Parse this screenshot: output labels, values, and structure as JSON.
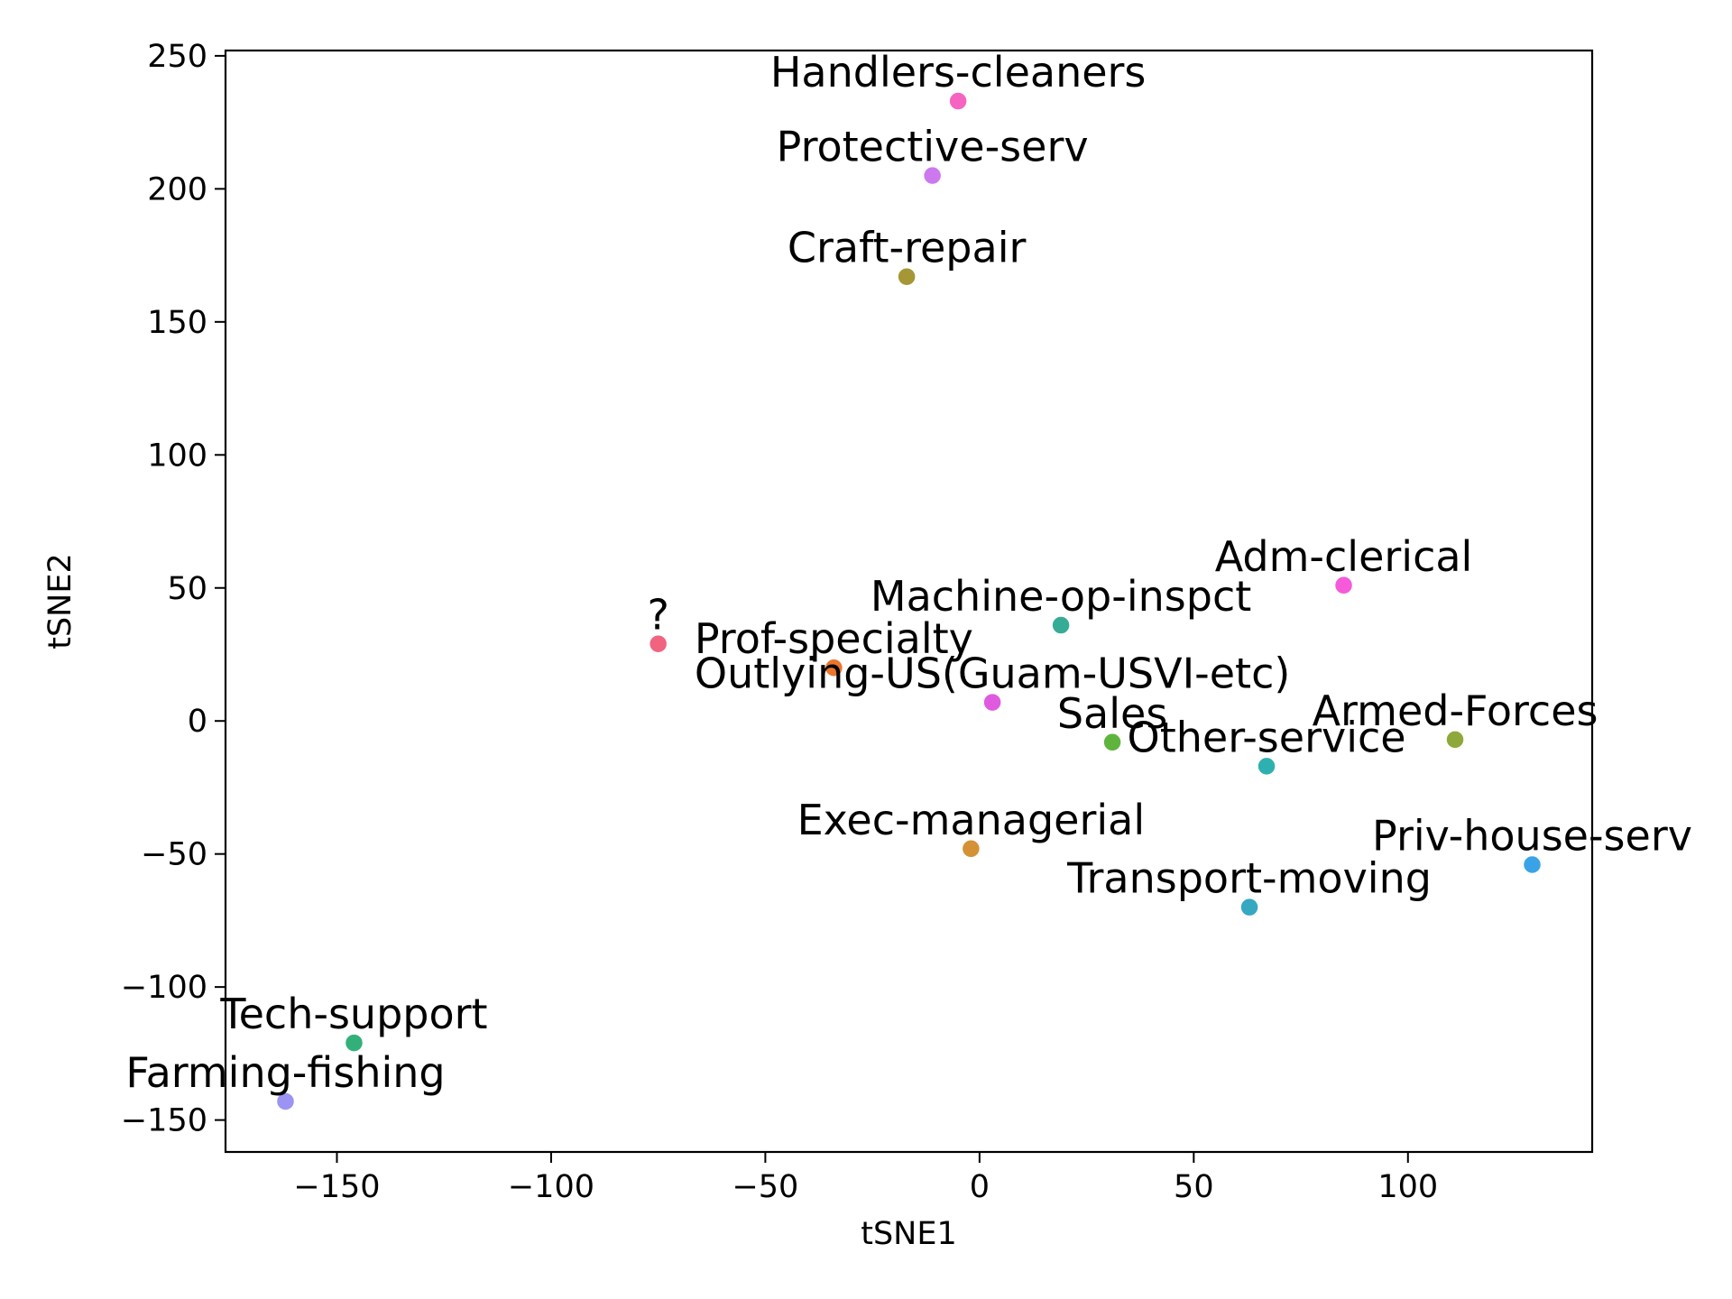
{
  "chart_data": {
    "type": "scatter",
    "title": "",
    "xlabel": "tSNE1",
    "ylabel": "tSNE2",
    "xlim": [
      -176,
      143
    ],
    "ylim": [
      -162,
      252
    ],
    "xticks": [
      -150,
      -100,
      -50,
      0,
      50,
      100
    ],
    "yticks": [
      -150,
      -100,
      -50,
      0,
      50,
      100,
      150,
      200,
      250
    ],
    "xtick_labels": [
      "−150",
      "−100",
      "−50",
      "0",
      "50",
      "100"
    ],
    "ytick_labels": [
      "−150",
      "−100",
      "−50",
      "0",
      "50",
      "100",
      "150",
      "200",
      "250"
    ],
    "grid": false,
    "legend": "none",
    "points": [
      {
        "label": "Handlers-cleaners",
        "x": -5,
        "y": 233,
        "color": "#f564c0"
      },
      {
        "label": "Protective-serv",
        "x": -11,
        "y": 205,
        "color": "#cc79f0"
      },
      {
        "label": "Craft-repair",
        "x": -17,
        "y": 167,
        "color": "#a59736"
      },
      {
        "label": "Adm-clerical",
        "x": 85,
        "y": 51,
        "color": "#f55ad9"
      },
      {
        "label": "Machine-op-inspct",
        "x": 19,
        "y": 36,
        "color": "#36ac97"
      },
      {
        "label": "?",
        "x": -75,
        "y": 29,
        "color": "#f16480"
      },
      {
        "label": "Prof-specialty",
        "x": -34,
        "y": 20,
        "color": "#e8762e"
      },
      {
        "label": "Outlying-US(Guam-USVI-etc)",
        "x": 3,
        "y": 7,
        "color": "#e05ae0"
      },
      {
        "label": "Sales",
        "x": 31,
        "y": -8,
        "color": "#5fb43e"
      },
      {
        "label": "Other-service",
        "x": 67,
        "y": -17,
        "color": "#2fb0b0"
      },
      {
        "label": "Armed-Forces",
        "x": 111,
        "y": -7,
        "color": "#8ea83a"
      },
      {
        "label": "Exec-managerial",
        "x": -2,
        "y": -48,
        "color": "#d49135"
      },
      {
        "label": "Priv-house-serv",
        "x": 129,
        "y": -54,
        "color": "#3aa3e8"
      },
      {
        "label": "Transport-moving",
        "x": 63,
        "y": -70,
        "color": "#36a8c2"
      },
      {
        "label": "Tech-support",
        "x": -146,
        "y": -121,
        "color": "#33b07a"
      },
      {
        "label": "Farming-fishing",
        "x": -162,
        "y": -143,
        "color": "#9b94f2"
      }
    ]
  }
}
